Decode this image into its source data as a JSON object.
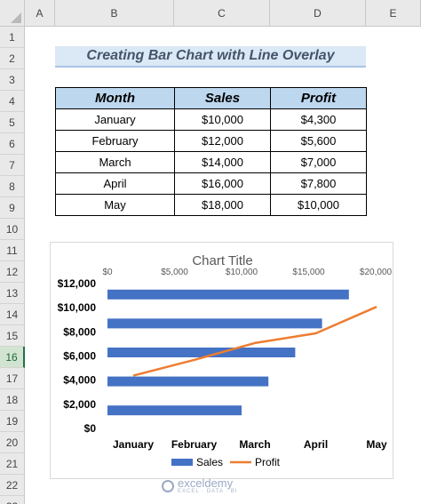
{
  "spreadsheet": {
    "columns": [
      "A",
      "B",
      "C",
      "D",
      "E"
    ],
    "rows": [
      "1",
      "2",
      "3",
      "4",
      "5",
      "6",
      "7",
      "8",
      "9",
      "10",
      "11",
      "12",
      "13",
      "14",
      "15",
      "16",
      "17",
      "18",
      "19",
      "20",
      "21",
      "22",
      "23"
    ],
    "active_row": "16"
  },
  "banner": {
    "title": "Creating Bar Chart with Line Overlay"
  },
  "table": {
    "headers": [
      "Month",
      "Sales",
      "Profit"
    ],
    "rows": [
      {
        "month": "January",
        "sales": "$10,000",
        "profit": "$4,300"
      },
      {
        "month": "February",
        "sales": "$12,000",
        "profit": "$5,600"
      },
      {
        "month": "March",
        "sales": "$14,000",
        "profit": "$7,000"
      },
      {
        "month": "April",
        "sales": "$16,000",
        "profit": "$7,800"
      },
      {
        "month": "May",
        "sales": "$18,000",
        "profit": "$10,000"
      }
    ]
  },
  "chart_data": {
    "type": "bar",
    "title": "Chart Title",
    "categories": [
      "January",
      "February",
      "March",
      "April",
      "May"
    ],
    "series": [
      {
        "name": "Sales",
        "type": "bar",
        "values": [
          10000,
          12000,
          14000,
          16000,
          18000
        ],
        "color": "#4472c4",
        "axis": "top"
      },
      {
        "name": "Profit",
        "type": "line",
        "values": [
          4300,
          5600,
          7000,
          7800,
          10000
        ],
        "color": "#ed7d31",
        "axis": "left"
      }
    ],
    "top_axis": {
      "ticks": [
        "$0",
        "$5,000",
        "$10,000",
        "$15,000",
        "$20,000"
      ],
      "range": [
        0,
        20000
      ]
    },
    "left_axis": {
      "ticks": [
        "$12,000",
        "$10,000",
        "$8,000",
        "$6,000",
        "$4,000",
        "$2,000",
        "$0"
      ],
      "range": [
        0,
        12000
      ]
    },
    "legend": {
      "placement": "bottom",
      "items": [
        "Sales",
        "Profit"
      ]
    },
    "grid": false
  },
  "watermark": {
    "name": "exceldemy",
    "tagline": "EXCEL · DATA · BI"
  }
}
